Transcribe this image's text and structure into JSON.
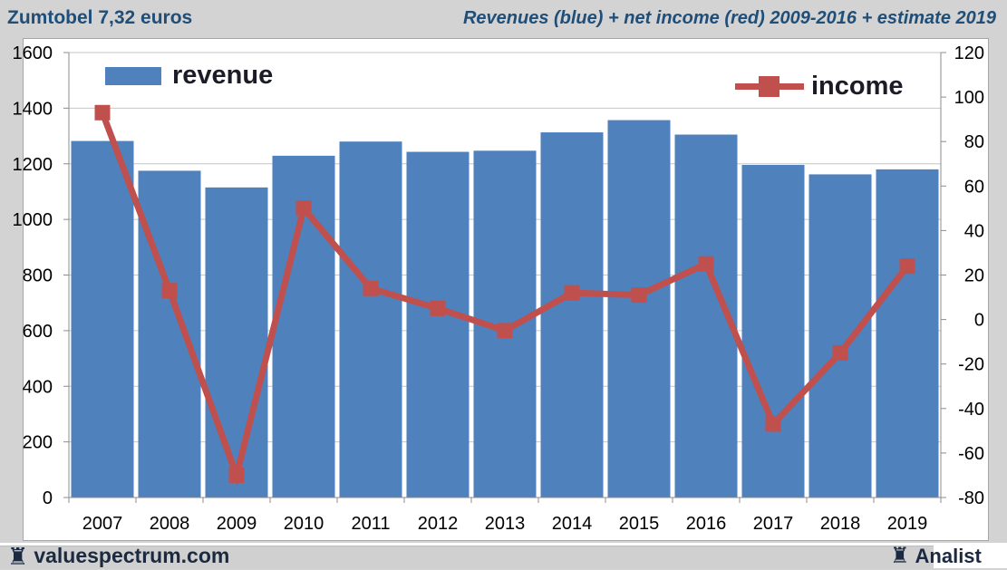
{
  "header": {
    "left_title": "Zumtobel 7,32 euros",
    "right_title": "Revenues (blue) + net income (red) 2009-2016 + estimate 2019"
  },
  "legend": {
    "revenue_label": "revenue",
    "income_label": "income"
  },
  "footer": {
    "left_brand": "valuespectrum.com",
    "right_brand": "Analist",
    "rook_icon": "♜"
  },
  "colors": {
    "revenue_bar": "#4F81BD",
    "income_line": "#C0504D",
    "title_text": "#1F4E79",
    "grid_line": "#C6C6C6",
    "axis_line": "#8C8C8C",
    "axis_text": "#000000",
    "footer_text": "#1B2A40",
    "footer_bar": "#D0D0D0",
    "page_bg": "#D3D3D3"
  },
  "chart_data": {
    "type": "bar",
    "title": "Revenues (blue) + net income (red) 2009-2016 + estimate 2019",
    "categories": [
      "2007",
      "2008",
      "2009",
      "2010",
      "2011",
      "2012",
      "2013",
      "2014",
      "2015",
      "2016",
      "2017",
      "2018",
      "2019"
    ],
    "series": [
      {
        "name": "revenue",
        "type": "bar",
        "axis": "left",
        "color": "#4F81BD",
        "values": [
          1282,
          1175,
          1115,
          1229,
          1280,
          1243,
          1247,
          1313,
          1357,
          1305,
          1196,
          1162,
          1180
        ]
      },
      {
        "name": "income",
        "type": "line",
        "axis": "right",
        "color": "#C0504D",
        "marker": "square",
        "values": [
          93,
          13,
          -70,
          50,
          14,
          5,
          -5,
          12,
          11,
          25,
          -47,
          -15,
          24
        ]
      }
    ],
    "left_axis": {
      "min": 0,
      "max": 1600,
      "step": 200,
      "tick_labels_top_down": [
        "1600",
        "1400",
        "1200",
        "1000",
        "800",
        "600",
        "400",
        "200",
        "0"
      ]
    },
    "right_axis": {
      "min": -80,
      "max": 120,
      "step": 20,
      "tick_labels_top_down": [
        "120",
        "100",
        "80",
        "60",
        "40",
        "20",
        "0",
        "-20",
        "-40",
        "-60",
        "-80"
      ]
    },
    "grid": true,
    "legend_position": "top-inside"
  }
}
